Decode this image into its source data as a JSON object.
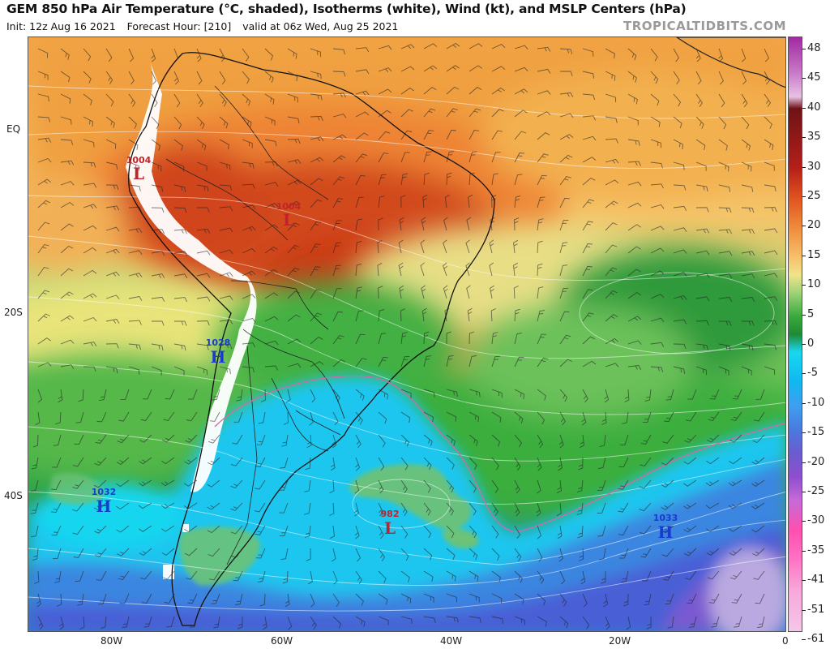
{
  "header": {
    "title": "GEM 850 hPa Air Temperature (°C, shaded), Isotherms (white), Wind (kt), and MSLP Centers (hPa)",
    "init": "Init: 12z Aug 16 2021",
    "forecast_hour": "Forecast Hour: [210]",
    "valid": "valid at 06z Wed, Aug 25 2021",
    "brand": "TROPICALTIDBITS.COM"
  },
  "axes": {
    "lat_labels": [
      "EQ",
      "20S",
      "40S"
    ],
    "lon_labels": [
      "80W",
      "60W",
      "40W",
      "20W",
      "0"
    ]
  },
  "colorbar": {
    "labels": [
      "48",
      "45",
      "40",
      "35",
      "30",
      "25",
      "20",
      "15",
      "10",
      "5",
      "0",
      "-5",
      "-10",
      "-15",
      "-20",
      "-25",
      "-30",
      "-35",
      "-41",
      "-51",
      "-61"
    ]
  },
  "pressure_centers": [
    {
      "type": "L",
      "value": "1004",
      "color": "#c2222a"
    },
    {
      "type": "L",
      "value": "1004",
      "color": "#c2222a"
    },
    {
      "type": "H",
      "value": "1028",
      "color": "#1a3bd0"
    },
    {
      "type": "H",
      "value": "1032",
      "color": "#1a3bd0"
    },
    {
      "type": "L",
      "value": "982",
      "color": "#c2222a"
    },
    {
      "type": "H",
      "value": "1033",
      "color": "#1a3bd0"
    }
  ],
  "colors": {
    "hot": "#c93a1a",
    "warm": "#ee8a3a",
    "mild": "#f3c86c",
    "green": "#3aae3e",
    "cold": "#16c9f0",
    "colder": "#3f73d6",
    "coldest": "#7a5ad0",
    "terrain_mask": "#ffffff"
  }
}
